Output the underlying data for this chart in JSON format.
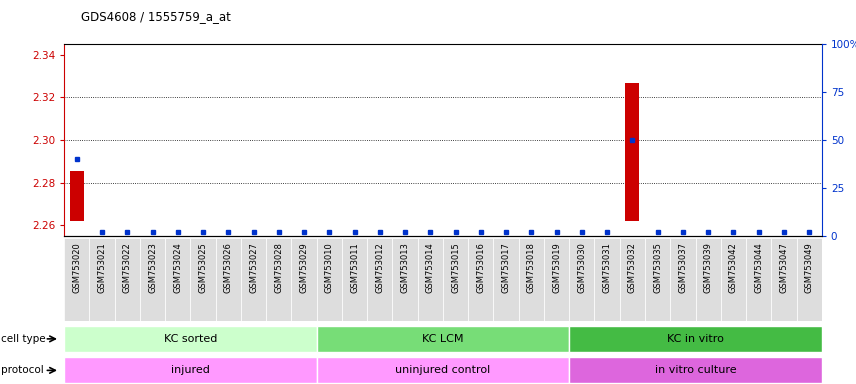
{
  "title": "GDS4608 / 1555759_a_at",
  "samples": [
    "GSM753020",
    "GSM753021",
    "GSM753022",
    "GSM753023",
    "GSM753024",
    "GSM753025",
    "GSM753026",
    "GSM753027",
    "GSM753028",
    "GSM753029",
    "GSM753010",
    "GSM753011",
    "GSM753012",
    "GSM753013",
    "GSM753014",
    "GSM753015",
    "GSM753016",
    "GSM753017",
    "GSM753018",
    "GSM753019",
    "GSM753030",
    "GSM753031",
    "GSM753032",
    "GSM753035",
    "GSM753037",
    "GSM753039",
    "GSM753042",
    "GSM753044",
    "GSM753047",
    "GSM753049"
  ],
  "red_values": [
    2.2855,
    2.262,
    2.262,
    2.262,
    2.262,
    2.262,
    2.262,
    2.262,
    2.262,
    2.262,
    2.262,
    2.262,
    2.262,
    2.262,
    2.262,
    2.262,
    2.262,
    2.262,
    2.262,
    2.262,
    2.262,
    2.262,
    2.327,
    2.262,
    2.262,
    2.262,
    2.262,
    2.262,
    2.262,
    2.262
  ],
  "blue_values": [
    40,
    2,
    2,
    2,
    2,
    2,
    2,
    2,
    2,
    2,
    2,
    2,
    2,
    2,
    2,
    2,
    2,
    2,
    2,
    2,
    2,
    2,
    50,
    2,
    2,
    2,
    2,
    2,
    2,
    2
  ],
  "ylim_left": [
    2.255,
    2.345
  ],
  "ylim_right": [
    0,
    100
  ],
  "yticks_left": [
    2.26,
    2.28,
    2.3,
    2.32,
    2.34
  ],
  "yticks_right": [
    0,
    25,
    50,
    75,
    100
  ],
  "ytick_labels_right": [
    "0",
    "25",
    "50",
    "75",
    "100%"
  ],
  "grid_yticks": [
    2.28,
    2.3,
    2.32
  ],
  "groups": [
    {
      "label": "KC sorted",
      "start": 0,
      "end": 9,
      "color": "#ccffcc"
    },
    {
      "label": "KC LCM",
      "start": 10,
      "end": 19,
      "color": "#77dd77"
    },
    {
      "label": "KC in vitro",
      "start": 20,
      "end": 29,
      "color": "#44bb44"
    }
  ],
  "protocols": [
    {
      "label": "injured",
      "start": 0,
      "end": 9,
      "color": "#ff99ff"
    },
    {
      "label": "uninjured control",
      "start": 10,
      "end": 19,
      "color": "#ff99ff"
    },
    {
      "label": "in vitro culture",
      "start": 20,
      "end": 29,
      "color": "#dd66dd"
    }
  ],
  "red_color": "#cc0000",
  "blue_color": "#0033cc",
  "baseline": 2.262,
  "bar_width": 0.55,
  "bg_color": "#ffffff",
  "plot_bg": "#ffffff",
  "label_color_left": "#cc0000",
  "label_color_right": "#0033cc",
  "xticklabel_bg": "#dddddd"
}
